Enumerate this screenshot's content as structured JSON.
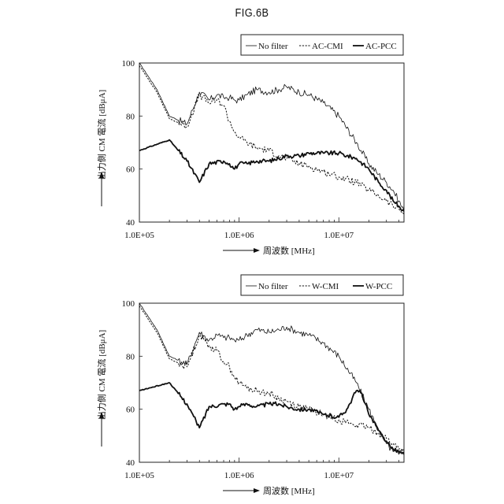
{
  "figure_title": "FIG.6B",
  "axis_label_x": "周波数 [MHz]",
  "axis_label_y": "出力側 CM 電流 [dBμA]",
  "colors": {
    "line": "#111111",
    "frame": "#222222",
    "grid": "#cccccc"
  },
  "chart_data": [
    {
      "type": "line",
      "xscale": "log",
      "xlabel": "周波数 [MHz]",
      "ylabel": "出力側 CM 電流 [dBμA]",
      "xlim": [
        100000,
        45000000
      ],
      "ylim": [
        40,
        100
      ],
      "xticks": [
        100000,
        1000000,
        10000000
      ],
      "xticklabels": [
        "1.0E+05",
        "1.0E+06",
        "1.0E+07"
      ],
      "yticks": [
        40,
        60,
        80,
        100
      ],
      "yticklabels": [
        "40",
        "60",
        "80",
        "100"
      ],
      "legend_position": "top-right",
      "series": [
        {
          "name": "No filter",
          "style": "thin",
          "x": [
            100000,
            150000,
            200000,
            300000,
            400000,
            500000,
            600000,
            700000,
            800000,
            900000,
            1000000,
            1200000,
            1500000,
            2000000,
            2500000,
            3000000,
            4000000,
            5000000,
            7000000,
            10000000,
            15000000,
            20000000,
            25000000,
            30000000,
            35000000,
            40000000,
            45000000
          ],
          "y": [
            100,
            90,
            80,
            77,
            89,
            86,
            88,
            87,
            87,
            86,
            86,
            88,
            90,
            89,
            90,
            91,
            89,
            88,
            85,
            80,
            70,
            62,
            58,
            55,
            52,
            48,
            44
          ]
        },
        {
          "name": "AC-CMI",
          "style": "dotted",
          "x": [
            100000,
            150000,
            200000,
            300000,
            400000,
            500000,
            600000,
            700000,
            800000,
            900000,
            1000000,
            1200000,
            1500000,
            2000000,
            2500000,
            3000000,
            4000000,
            5000000,
            7000000,
            10000000,
            15000000,
            20000000,
            25000000,
            30000000,
            35000000,
            40000000,
            45000000
          ],
          "y": [
            99,
            89,
            79,
            76,
            88,
            85,
            86,
            84,
            78,
            74,
            72,
            70,
            68,
            67,
            65,
            64,
            62,
            61,
            59,
            57,
            55,
            52,
            50,
            48,
            46,
            45,
            43
          ]
        },
        {
          "name": "AC-PCC",
          "style": "thick",
          "x": [
            100000,
            200000,
            300000,
            400000,
            500000,
            700000,
            800000,
            900000,
            1000000,
            1200000,
            1500000,
            2000000,
            2500000,
            3000000,
            4000000,
            5000000,
            7000000,
            10000000,
            12000000,
            15000000,
            20000000,
            25000000,
            30000000,
            35000000,
            40000000,
            45000000
          ],
          "y": [
            67,
            71,
            63,
            55,
            62,
            63,
            62,
            60,
            62,
            62,
            63,
            63,
            64,
            65,
            65,
            66,
            66,
            66,
            65,
            64,
            60,
            55,
            52,
            48,
            46,
            44
          ]
        }
      ]
    },
    {
      "type": "line",
      "xscale": "log",
      "xlabel": "周波数 [MHz]",
      "ylabel": "出力側 CM 電流 [dBμA]",
      "xlim": [
        100000,
        45000000
      ],
      "ylim": [
        40,
        100
      ],
      "xticks": [
        100000,
        1000000,
        10000000
      ],
      "xticklabels": [
        "1.0E+05",
        "1.0E+06",
        "1.0E+07"
      ],
      "yticks": [
        40,
        60,
        80,
        100
      ],
      "yticklabels": [
        "40",
        "60",
        "80",
        "100"
      ],
      "legend_position": "top-right",
      "series": [
        {
          "name": "No filter",
          "style": "thin",
          "x": [
            100000,
            150000,
            200000,
            300000,
            400000,
            500000,
            600000,
            700000,
            800000,
            900000,
            1000000,
            1200000,
            1500000,
            2000000,
            2500000,
            3000000,
            4000000,
            5000000,
            7000000,
            10000000,
            15000000,
            20000000,
            25000000,
            30000000,
            35000000,
            40000000,
            45000000
          ],
          "y": [
            100,
            90,
            80,
            77,
            89,
            86,
            88,
            87,
            87,
            86,
            86,
            88,
            90,
            89,
            90,
            91,
            89,
            88,
            85,
            80,
            70,
            60,
            52,
            47,
            44,
            43,
            45
          ]
        },
        {
          "name": "W-CMI",
          "style": "dotted",
          "x": [
            100000,
            150000,
            200000,
            300000,
            400000,
            500000,
            600000,
            700000,
            800000,
            900000,
            1000000,
            1200000,
            1500000,
            2000000,
            2500000,
            3000000,
            4000000,
            5000000,
            7000000,
            10000000,
            15000000,
            20000000,
            25000000,
            30000000,
            35000000,
            40000000,
            45000000
          ],
          "y": [
            99,
            89,
            79,
            76,
            88,
            84,
            82,
            78,
            76,
            72,
            70,
            68,
            67,
            66,
            64,
            63,
            61,
            60,
            58,
            56,
            54,
            53,
            51,
            49,
            47,
            45,
            44
          ]
        },
        {
          "name": "W-PCC",
          "style": "thick",
          "x": [
            100000,
            200000,
            300000,
            400000,
            500000,
            700000,
            800000,
            900000,
            1000000,
            1200000,
            1500000,
            2000000,
            2500000,
            3000000,
            4000000,
            5000000,
            7000000,
            10000000,
            12000000,
            15000000,
            17000000,
            20000000,
            25000000,
            30000000,
            35000000,
            40000000,
            45000000
          ],
          "y": [
            67,
            70,
            62,
            53,
            61,
            62,
            62,
            60,
            61,
            62,
            61,
            62,
            62,
            61,
            60,
            60,
            58,
            57,
            60,
            67,
            66,
            58,
            52,
            48,
            45,
            44,
            43
          ]
        }
      ]
    }
  ]
}
